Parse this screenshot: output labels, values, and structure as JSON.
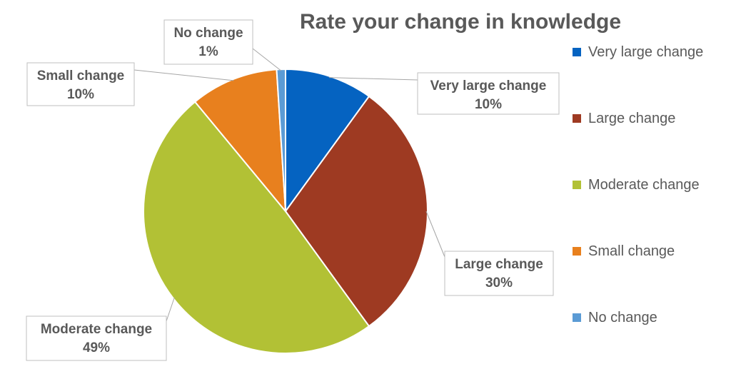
{
  "chart_data": {
    "type": "pie",
    "title": "Rate your change in knowledge",
    "legend_position": "right",
    "slices": [
      {
        "label": "Very large change",
        "value": 10,
        "value_label": "10%",
        "color": "#0563C1"
      },
      {
        "label": "Large change",
        "value": 30,
        "value_label": "30%",
        "color": "#9E3A22"
      },
      {
        "label": "Moderate change",
        "value": 49,
        "value_label": "49%",
        "color": "#B2C135"
      },
      {
        "label": "Small change",
        "value": 10,
        "value_label": "10%",
        "color": "#E8801E"
      },
      {
        "label": "No change",
        "value": 1,
        "value_label": "1%",
        "color": "#5B9BD5"
      }
    ]
  }
}
